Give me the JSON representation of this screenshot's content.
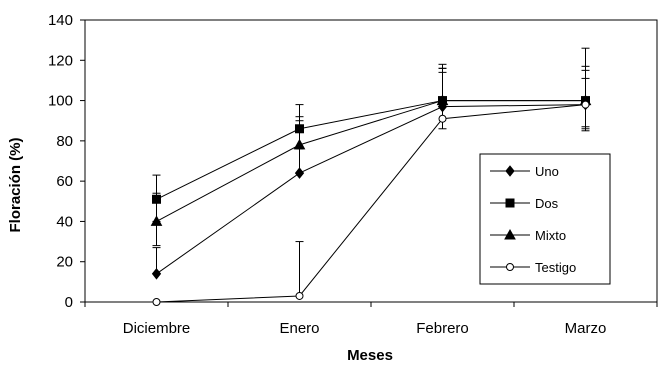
{
  "chart_data": {
    "type": "line",
    "title": "",
    "xlabel": "Meses",
    "ylabel": "Floración (%)",
    "categories": [
      "Diciembre",
      "Enero",
      "Febrero",
      "Marzo"
    ],
    "ylim": [
      0,
      140
    ],
    "yticks": [
      0,
      20,
      40,
      60,
      80,
      100,
      120,
      140
    ],
    "grid": false,
    "legend_position": "right",
    "series": [
      {
        "name": "Uno",
        "marker": "diamond",
        "values": [
          14,
          64,
          97,
          98
        ],
        "error_upper": [
          13,
          28,
          17,
          13
        ],
        "error_lower": [
          0,
          0,
          0,
          0
        ]
      },
      {
        "name": "Dos",
        "marker": "square",
        "values": [
          51,
          86,
          100,
          100
        ],
        "error_upper": [
          12,
          12,
          16,
          26
        ],
        "error_lower": [
          11,
          10,
          0,
          14
        ]
      },
      {
        "name": "Mixto",
        "marker": "triangle",
        "values": [
          40,
          78,
          100,
          100
        ],
        "error_upper": [
          14,
          12,
          18,
          17
        ],
        "error_lower": [
          12,
          0,
          0,
          15
        ]
      },
      {
        "name": "Testigo",
        "marker": "circle-open",
        "values": [
          0,
          3,
          91,
          98
        ],
        "error_upper": [
          0,
          27,
          25,
          17
        ],
        "error_lower": [
          0,
          0,
          5,
          11
        ]
      }
    ]
  }
}
